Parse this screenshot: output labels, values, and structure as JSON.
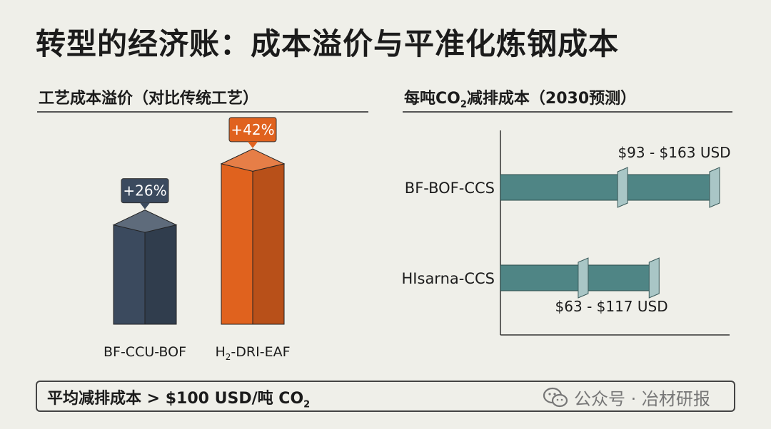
{
  "title": "转型的经济账：成本溢价与平准化炼钢成本",
  "left_panel": {
    "title": "工艺成本溢价（对比传统工艺）"
  },
  "right_panel": {
    "title_prefix": "每吨CO",
    "title_sub": "2",
    "title_suffix": "减排成本（2030预测）"
  },
  "footer": {
    "text": "平均减排成本 > $100 USD/吨 CO",
    "text_sub": "2"
  },
  "watermark": {
    "text": "公众号 · 冶材研报"
  },
  "colors": {
    "bar1": "#3b4a5e",
    "bar2": "#e0621e",
    "range_bar": "#4f8585",
    "text": "#1b1b1b"
  },
  "chart_data": [
    {
      "type": "bar",
      "title": "工艺成本溢价（对比传统工艺）",
      "categories": [
        "BF-CCU-BOF",
        "H2-DRI-EAF"
      ],
      "category_labels": [
        {
          "main": "BF-CCU-BOF",
          "pre": "",
          "sub": "",
          "post": ""
        },
        {
          "main": "",
          "pre": "H",
          "sub": "2",
          "post": "-DRI-EAF"
        }
      ],
      "values": [
        26,
        42
      ],
      "data_labels": [
        "+26%",
        "+42%"
      ],
      "unit": "%",
      "ylim": [
        0,
        50
      ]
    },
    {
      "type": "range_bar",
      "title": "每吨CO2减排成本（2030预测）",
      "categories": [
        "BF-BOF-CCS",
        "HIsarna-CCS"
      ],
      "ranges": [
        [
          93,
          163
        ],
        [
          63,
          117
        ]
      ],
      "data_labels": [
        "$93 - $163 USD",
        "$63 - $117 USD"
      ],
      "unit": "USD/t CO2",
      "xlim": [
        0,
        175
      ]
    }
  ]
}
